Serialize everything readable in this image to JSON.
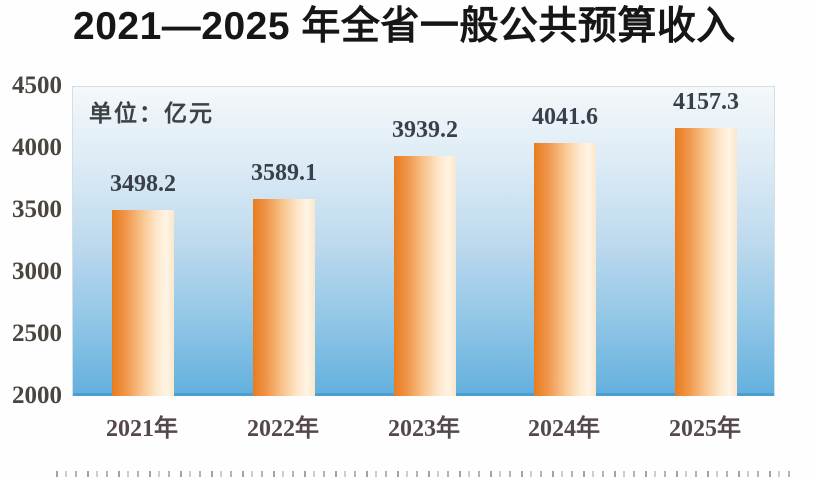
{
  "page": {
    "title": "2021—2025 年全省一般公共预算收入",
    "unit_label": "单位：亿元"
  },
  "chart_data": {
    "type": "bar",
    "title": "2021—2025 年全省一般公共预算收入",
    "unit": "亿元",
    "categories": [
      "2021年",
      "2022年",
      "2023年",
      "2024年",
      "2025年"
    ],
    "values": [
      3498.2,
      3589.1,
      3939.2,
      4041.6,
      4157.3
    ],
    "value_labels": [
      "3498.2",
      "3589.1",
      "3939.2",
      "4041.6",
      "4157.3"
    ],
    "yticks": [
      4500,
      4000,
      3500,
      3000,
      2500,
      2000
    ],
    "ylim": [
      2000,
      4500
    ],
    "xlabel": "",
    "ylabel": "单位：亿元",
    "grid": false,
    "legend": "none",
    "colors": {
      "title_color": "#161616",
      "value_label_color": "#39404b",
      "ytick_color": "#4b4540",
      "xlabel_color": "#55484a",
      "baseline_color": "#4b9ed2",
      "bar_gradient": [
        "#e87c1e",
        "#f0964a",
        "#f8c48c",
        "#fde7cb",
        "#fff4e4",
        "#fae6cc"
      ],
      "plot_gradient": [
        "#f4f8fa",
        "#dcebf5",
        "#bedaee",
        "#92c7e7",
        "#62b0de"
      ]
    }
  }
}
